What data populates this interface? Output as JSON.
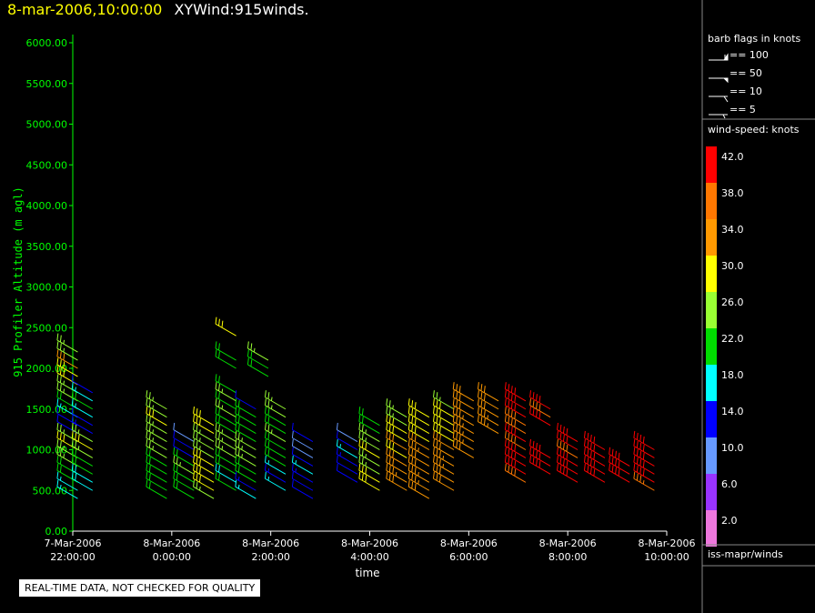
{
  "header": {
    "date": "8-mar-2006,10:00:00",
    "product": "XYWind:915winds."
  },
  "notice": "REAL-TIME DATA, NOT CHECKED FOR QUALITY",
  "chart_data": {
    "type": "wind-barb",
    "ylabel": "915 Profiler Altitude (m agl)",
    "xlabel": "time",
    "yticks": [
      "0.00",
      "500.00",
      "1000.00",
      "1500.00",
      "2000.00",
      "2500.00",
      "3000.00",
      "3500.00",
      "4000.00",
      "4500.00",
      "5000.00",
      "5500.00",
      "6000.00"
    ],
    "ylim": [
      0,
      6000
    ],
    "xticks": [
      {
        "date": "7-Mar-2006",
        "time": "22:00:00",
        "hour": -2
      },
      {
        "date": "8-Mar-2006",
        "time": "0:00:00",
        "hour": 0
      },
      {
        "date": "8-Mar-2006",
        "time": "2:00:00",
        "hour": 2
      },
      {
        "date": "8-Mar-2006",
        "time": "4:00:00",
        "hour": 4
      },
      {
        "date": "8-Mar-2006",
        "time": "6:00:00",
        "hour": 6
      },
      {
        "date": "8-Mar-2006",
        "time": "8:00:00",
        "hour": 8
      },
      {
        "date": "8-Mar-2006",
        "time": "10:00:00",
        "hour": 10
      }
    ],
    "xlim": [
      -2,
      10
    ],
    "direction_deg": 300,
    "profiles": [
      {
        "hour": -1.9,
        "alt": [
          400,
          500,
          600,
          700,
          800,
          900,
          1000,
          1100,
          1200,
          1300,
          1400,
          1500,
          1600,
          1700,
          1800,
          1900,
          2000,
          2100,
          2200
        ],
        "spd": [
          18,
          18,
          22,
          22,
          26,
          28,
          30,
          28,
          14,
          14,
          18,
          24,
          26,
          28,
          30,
          30,
          34,
          26,
          26
        ]
      },
      {
        "hour": -1.6,
        "alt": [
          500,
          600,
          700,
          800,
          900,
          1000,
          1100,
          1200,
          1300,
          1400,
          1500,
          1600,
          1700
        ],
        "spd": [
          20,
          20,
          22,
          24,
          26,
          30,
          28,
          16,
          14,
          18,
          22,
          18,
          14
        ]
      },
      {
        "hour": -0.1,
        "alt": [
          400,
          500,
          600,
          700,
          800,
          900,
          1000,
          1100,
          1200,
          1300,
          1400,
          1500
        ],
        "spd": [
          24,
          24,
          22,
          22,
          24,
          26,
          26,
          28,
          28,
          30,
          26,
          26
        ]
      },
      {
        "hour": 0.45,
        "alt": [
          400,
          500,
          600,
          700,
          800,
          900,
          1000,
          1100
        ],
        "spd": [
          24,
          22,
          24,
          26,
          22,
          14,
          14,
          12
        ]
      },
      {
        "hour": 0.85,
        "alt": [
          400,
          500,
          600,
          700,
          800,
          900,
          1000,
          1100,
          1200,
          1300
        ],
        "spd": [
          28,
          30,
          30,
          32,
          30,
          26,
          28,
          28,
          30,
          30
        ]
      },
      {
        "hour": 1.3,
        "alt": [
          500,
          600,
          700,
          800,
          900,
          1000,
          1100,
          1200,
          1300,
          1400,
          1500,
          1600,
          1700,
          2000,
          2100,
          2400
        ],
        "spd": [
          22,
          20,
          22,
          24,
          28,
          26,
          26,
          24,
          22,
          26,
          22,
          26,
          22,
          24,
          22,
          30
        ]
      },
      {
        "hour": 1.7,
        "alt": [
          400,
          500,
          600,
          700,
          800,
          900,
          1000,
          1100,
          1200,
          1300,
          1400,
          1500
        ],
        "spd": [
          18,
          16,
          22,
          24,
          26,
          26,
          26,
          24,
          22,
          22,
          24,
          14
        ]
      },
      {
        "hour": 1.95,
        "alt": [
          1900,
          2000,
          2100
        ],
        "spd": [
          24,
          22,
          26
        ]
      },
      {
        "hour": 2.3,
        "alt": [
          500,
          600,
          700,
          800,
          900,
          1000,
          1100,
          1200,
          1300,
          1400,
          1500
        ],
        "spd": [
          18,
          16,
          18,
          22,
          24,
          24,
          26,
          24,
          22,
          26,
          26
        ]
      },
      {
        "hour": 2.85,
        "alt": [
          400,
          500,
          600,
          700,
          800,
          900,
          1000,
          1100
        ],
        "spd": [
          14,
          14,
          16,
          18,
          14,
          12,
          12,
          14
        ]
      },
      {
        "hour": 3.75,
        "alt": [
          600,
          700,
          800,
          900,
          1000,
          1100
        ],
        "spd": [
          14,
          14,
          16,
          18,
          14,
          12
        ]
      },
      {
        "hour": 4.2,
        "alt": [
          500,
          600,
          700,
          800,
          900,
          1000,
          1100,
          1200,
          1300
        ],
        "spd": [
          30,
          30,
          26,
          28,
          30,
          28,
          26,
          24,
          22
        ]
      },
      {
        "hour": 4.75,
        "alt": [
          500,
          600,
          700,
          800,
          900,
          1000,
          1100,
          1200,
          1300,
          1400
        ],
        "spd": [
          34,
          36,
          34,
          34,
          32,
          34,
          32,
          30,
          28,
          26
        ]
      },
      {
        "hour": 5.2,
        "alt": [
          400,
          500,
          600,
          700,
          800,
          900,
          1000,
          1100,
          1200,
          1300,
          1400
        ],
        "spd": [
          34,
          36,
          36,
          34,
          34,
          36,
          34,
          32,
          30,
          30,
          32
        ]
      },
      {
        "hour": 5.7,
        "alt": [
          500,
          600,
          700,
          800,
          900,
          1000,
          1100,
          1200,
          1300,
          1400,
          1500
        ],
        "spd": [
          34,
          34,
          36,
          36,
          34,
          34,
          32,
          32,
          30,
          30,
          26
        ]
      },
      {
        "hour": 6.1,
        "alt": [
          900,
          1000,
          1100,
          1200,
          1300,
          1400,
          1500,
          1600
        ],
        "spd": [
          34,
          36,
          36,
          36,
          36,
          34,
          34,
          34
        ]
      },
      {
        "hour": 6.6,
        "alt": [
          1200,
          1300,
          1400,
          1500,
          1600
        ],
        "spd": [
          36,
          36,
          34,
          34,
          34
        ]
      },
      {
        "hour": 7.15,
        "alt": [
          600,
          700,
          800,
          900,
          1000,
          1100,
          1200,
          1300,
          1400,
          1500,
          1600
        ],
        "spd": [
          40,
          42,
          42,
          42,
          40,
          42,
          40,
          40,
          42,
          42,
          42
        ]
      },
      {
        "hour": 7.65,
        "alt": [
          700,
          800,
          900,
          1300,
          1400,
          1500
        ],
        "spd": [
          42,
          42,
          42,
          42,
          40,
          42
        ]
      },
      {
        "hour": 8.2,
        "alt": [
          600,
          700,
          800,
          900,
          1000,
          1100
        ],
        "spd": [
          42,
          42,
          42,
          40,
          42,
          42
        ]
      },
      {
        "hour": 8.75,
        "alt": [
          600,
          700,
          800,
          900,
          1000
        ],
        "spd": [
          42,
          42,
          42,
          42,
          42
        ]
      },
      {
        "hour": 9.25,
        "alt": [
          600,
          700,
          800
        ],
        "spd": [
          42,
          42,
          42
        ]
      },
      {
        "hour": 9.75,
        "alt": [
          500,
          600,
          700,
          800,
          900,
          1000
        ],
        "spd": [
          38,
          42,
          42,
          42,
          42,
          42
        ]
      }
    ]
  },
  "legend": {
    "barb_title": "barb flags in knots",
    "barbs": [
      {
        "label": "== 100",
        "kind": "flag100"
      },
      {
        "label": "== 50",
        "kind": "flag50"
      },
      {
        "label": "== 10",
        "kind": "full"
      },
      {
        "label": "== 5",
        "kind": "half"
      }
    ],
    "color_title": "wind-speed: knots",
    "color_bins": [
      {
        "label": "42.0",
        "color": "#ff0000"
      },
      {
        "label": "38.0",
        "color": "#ff7700"
      },
      {
        "label": "34.0",
        "color": "#ff9900"
      },
      {
        "label": "30.0",
        "color": "#ffff00"
      },
      {
        "label": "26.0",
        "color": "#99ff33"
      },
      {
        "label": "22.0",
        "color": "#00dd00"
      },
      {
        "label": "18.0",
        "color": "#00ffff"
      },
      {
        "label": "14.0",
        "color": "#0000ff"
      },
      {
        "label": "10.0",
        "color": "#6699ff"
      },
      {
        "label": "6.0",
        "color": "#9933ff"
      },
      {
        "label": "2.0",
        "color": "#ee77dd"
      }
    ],
    "source": "iss-mapr/winds"
  }
}
